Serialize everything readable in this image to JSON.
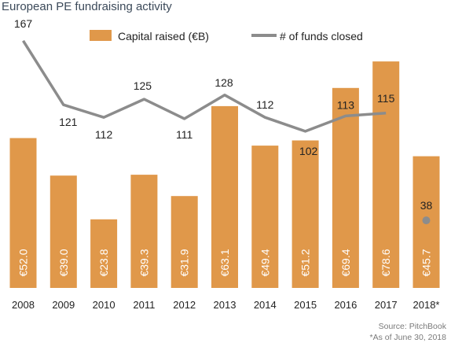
{
  "chart_data": {
    "type": "bar",
    "title": "European PE fundraising activity",
    "categories": [
      "2008",
      "2009",
      "2010",
      "2011",
      "2012",
      "2013",
      "2014",
      "2015",
      "2016",
      "2017",
      "2018*"
    ],
    "series": [
      {
        "name": "Capital raised (€B)",
        "type": "bar",
        "values": [
          52.0,
          39.0,
          23.8,
          39.3,
          31.9,
          63.1,
          49.4,
          51.2,
          69.4,
          78.6,
          45.7
        ],
        "labels": [
          "€52.0",
          "€39.0",
          "€23.8",
          "€39.3",
          "€31.9",
          "€63.1",
          "€49.4",
          "€51.2",
          "€69.4",
          "€78.6",
          "€45.7"
        ],
        "color": "#e0984a"
      },
      {
        "name": "# of funds closed",
        "type": "line",
        "values": [
          167,
          121,
          112,
          125,
          111,
          128,
          112,
          102,
          113,
          115,
          38
        ],
        "labels": [
          "167",
          "121",
          "112",
          "125",
          "111",
          "128",
          "112",
          "102",
          "113",
          "115",
          "38"
        ],
        "color": "#8c8c8c",
        "note_last_point_as_marker": true
      }
    ],
    "legend": "top",
    "grid": false,
    "xlabel": "",
    "ylabel": ""
  },
  "source": "Source: PitchBook",
  "footnote": "*As of June 30, 2018"
}
